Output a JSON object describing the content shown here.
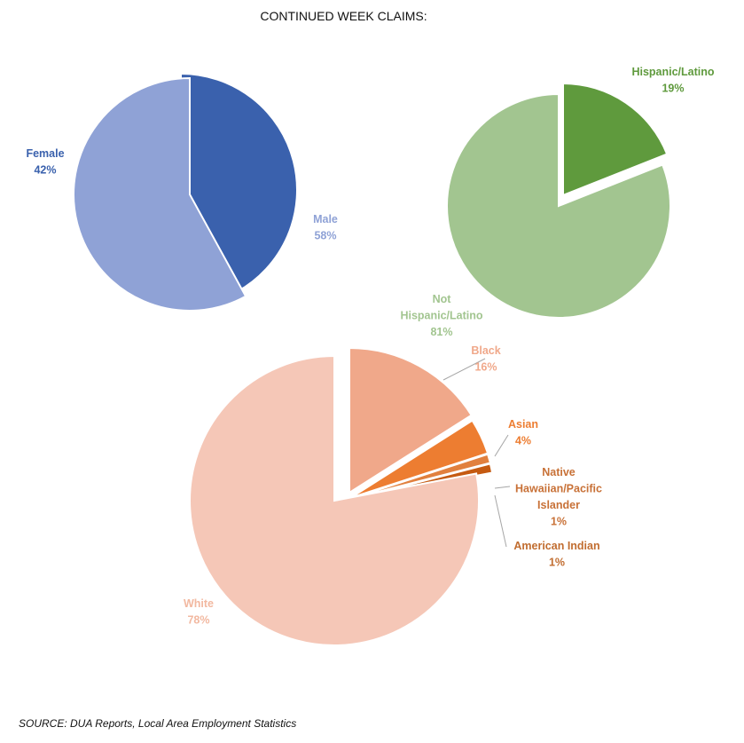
{
  "title": "CONTINUED WEEK CLAIMS:",
  "source": "SOURCE: DUA Reports, Local Area Employment Statistics",
  "chart_data": [
    {
      "type": "pie",
      "categories": [
        "Female",
        "Male"
      ],
      "values": [
        42,
        58
      ],
      "data_labels": [
        "42%",
        "58%"
      ],
      "colors": [
        "#3a61ad",
        "#8fa2d6"
      ],
      "exploded": "Female"
    },
    {
      "type": "pie",
      "categories": [
        "Hispanic/Latino",
        "Not Hispanic/Latino"
      ],
      "values": [
        19,
        81
      ],
      "data_labels": [
        "19%",
        "81%"
      ],
      "colors": [
        "#5f9a3d",
        "#a2c590"
      ],
      "exploded": "Hispanic/Latino"
    },
    {
      "type": "pie",
      "categories": [
        "Black",
        "Asian",
        "Native Hawaiian/Pacific Islander",
        "American Indian",
        "White"
      ],
      "values": [
        16,
        4,
        1,
        1,
        78
      ],
      "data_labels": [
        "16%",
        "4%",
        "1%",
        "1%",
        "78%"
      ],
      "colors": [
        "#f0a88a",
        "#ed7d31",
        "#e1803e",
        "#c55a11",
        "#f5c7b7"
      ],
      "label_colors": [
        "#f0a88a",
        "#ed7d31",
        "#c87137",
        "#c16d30",
        "#f2b8a0"
      ],
      "exploded": "all"
    }
  ]
}
